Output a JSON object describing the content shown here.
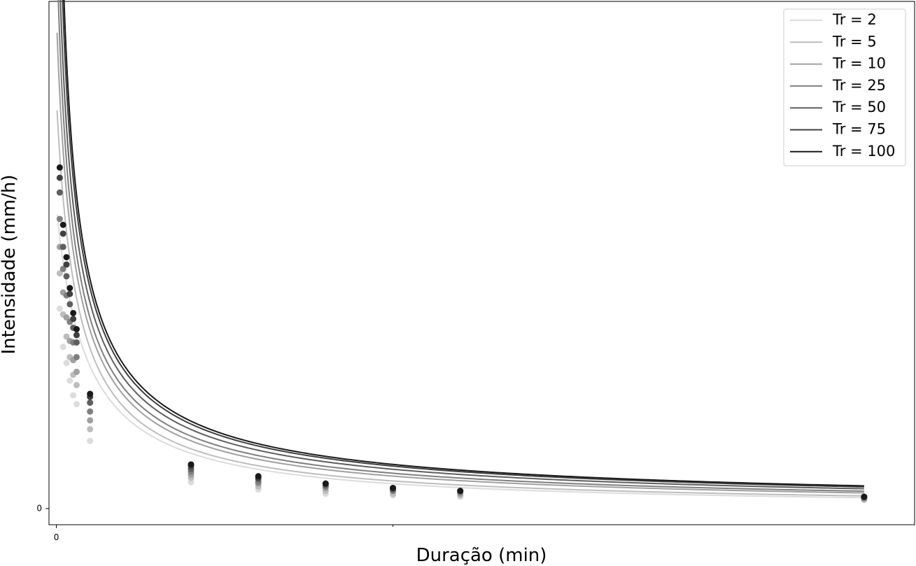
{
  "chart_data": {
    "type": "line",
    "title": "",
    "xlabel": "Duração (min)",
    "ylabel": "Intensidade (mm/h)",
    "xlim": [
      -11,
      1275
    ],
    "ylim": [
      -11,
      345
    ],
    "x_tick_labels": [
      {
        "value": 0,
        "label": "0"
      }
    ],
    "y_tick_labels": [
      {
        "value": 0,
        "label": "0"
      }
    ],
    "x_minor_ticks": [
      500
    ],
    "grid": false,
    "legend": {
      "position": "top-right"
    },
    "observation_durations": [
      5,
      10,
      15,
      20,
      25,
      30,
      50,
      200,
      300,
      400,
      500,
      600,
      1200
    ],
    "series": [
      {
        "name": "Tr = 2",
        "color": "#dcdcdc",
        "curve": {
          "K": 9200,
          "b": 45,
          "c": 1.0
        },
        "observed": [
          136,
          110,
          99,
          87,
          77,
          71,
          46,
          18,
          13,
          10,
          9,
          8,
          6
        ]
      },
      {
        "name": "Tr = 5",
        "color": "#bdbdbd",
        "curve": {
          "K": 6000,
          "b": 28,
          "c": 0.92
        },
        "observed": [
          160,
          132,
          117,
          103,
          91,
          84,
          54,
          21,
          15,
          12,
          10,
          9,
          6
        ]
      },
      {
        "name": "Tr = 10",
        "color": "#a0a0a0",
        "curve": {
          "K": 4800,
          "b": 22,
          "c": 0.86
        },
        "observed": [
          178,
          147,
          130,
          114,
          101,
          93,
          60,
          23,
          17,
          14,
          12,
          10,
          7
        ]
      },
      {
        "name": "Tr = 25",
        "color": "#7f7f7f",
        "curve": {
          "K": 4300,
          "b": 18,
          "c": 0.83
        },
        "observed": [
          197,
          163,
          145,
          127,
          113,
          103,
          66,
          25,
          18,
          15,
          12,
          11,
          7
        ]
      },
      {
        "name": "Tr = 50",
        "color": "#5e5e5e",
        "curve": {
          "K": 3950,
          "b": 15,
          "c": 0.8
        },
        "observed": [
          215,
          178,
          158,
          139,
          123,
          113,
          72,
          27,
          20,
          16,
          13,
          12,
          8
        ]
      },
      {
        "name": "Tr = 75",
        "color": "#404040",
        "curve": {
          "K": 3750,
          "b": 12,
          "c": 0.78
        },
        "observed": [
          225,
          187,
          166,
          146,
          129,
          118,
          76,
          29,
          21,
          17,
          14,
          12,
          8
        ]
      },
      {
        "name": "Tr = 100",
        "color": "#1a1a1a",
        "curve": {
          "K": 3650,
          "b": 10,
          "c": 0.77
        },
        "observed": [
          232,
          193,
          171,
          150,
          133,
          122,
          78,
          30,
          22,
          17,
          14,
          12,
          8
        ]
      }
    ]
  }
}
